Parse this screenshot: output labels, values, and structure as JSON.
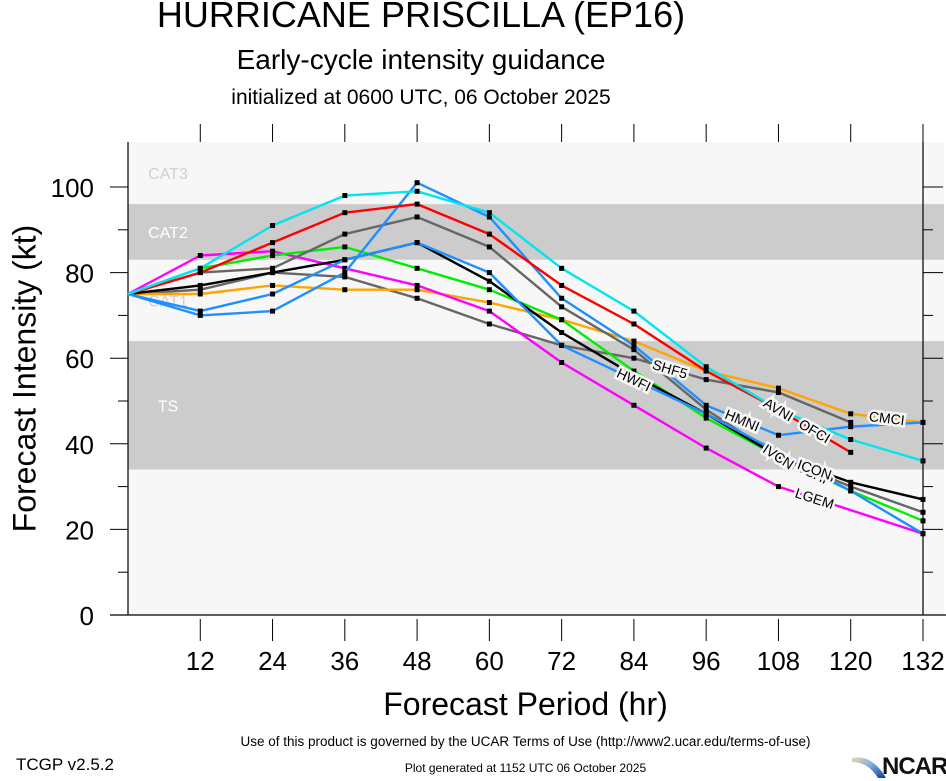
{
  "header": {
    "title": "HURRICANE PRISCILLA (EP16)",
    "subtitle": "Early-cycle intensity guidance",
    "init_line": "initialized at 0600 UTC, 06 October 2025"
  },
  "footer": {
    "terms": "Use of this product is governed by the UCAR Terms of Use (http://www2.ucar.edu/terms-of-use)",
    "generated": "Plot generated at 1152 UTC   06 October 2025",
    "version": "TCGP v2.5.2",
    "logo_text": "NCAR"
  },
  "chart_data": {
    "type": "line",
    "title": "HURRICANE PRISCILLA (EP16)",
    "xlabel": "Forecast Period (hr)",
    "ylabel": "Forecast Intensity (kt)",
    "xlim": [
      0,
      132
    ],
    "ylim": [
      0,
      110
    ],
    "x": [
      0,
      12,
      24,
      36,
      48,
      60,
      72,
      84,
      96,
      108,
      120,
      132
    ],
    "xticks": [
      12,
      24,
      36,
      48,
      60,
      72,
      84,
      96,
      108,
      120,
      132
    ],
    "yticks": [
      0,
      20,
      40,
      60,
      80,
      100
    ],
    "yminor": [
      10,
      30,
      50,
      70,
      90
    ],
    "grid": false,
    "bands": [
      {
        "label": "TS",
        "from": 34,
        "to": 64,
        "shaded": true
      },
      {
        "label": "CAT1",
        "from": 64,
        "to": 83,
        "shaded": false
      },
      {
        "label": "CAT2",
        "from": 83,
        "to": 96,
        "shaded": true
      },
      {
        "label": "CAT3",
        "from": 96,
        "to": 113,
        "shaded": false
      }
    ],
    "colors": {
      "band_shaded": "#cccccc",
      "band_light": "#f7f7f7",
      "band_label": "#ffffff",
      "cat3_label": "#d0d0d0"
    },
    "series": [
      {
        "name": "SHF5",
        "color": "#666666",
        "values": [
          75,
          76,
          80,
          79,
          74,
          68,
          63,
          60,
          55,
          52,
          45,
          null
        ],
        "label_at": 90
      },
      {
        "name": "CMCI",
        "color": "#ffa500",
        "values": [
          75,
          75,
          77,
          76,
          76,
          73,
          69,
          64,
          57,
          53,
          47,
          45
        ],
        "label_at": 126
      },
      {
        "name": "LGEM",
        "color": "#ff00ff",
        "values": [
          75,
          84,
          85,
          81,
          77,
          71,
          59,
          49,
          39,
          30,
          null,
          19
        ],
        "label_at": 114
      },
      {
        "name": "DSHP",
        "color": "#00ee00",
        "values": [
          75,
          81,
          84,
          86,
          81,
          76,
          69,
          57,
          46,
          37,
          29,
          22
        ],
        "label_at": 114
      },
      {
        "name": "IVCN",
        "color": "#666666",
        "values": [
          75,
          80,
          81,
          89,
          93,
          86,
          72,
          62,
          48,
          37,
          30,
          24
        ],
        "label_at": 108
      },
      {
        "name": "ICON",
        "color": "#000000",
        "values": [
          75,
          77,
          80,
          83,
          87,
          78,
          66,
          56,
          47,
          37,
          31,
          27
        ],
        "label_at": 114
      },
      {
        "name": "HWFI",
        "color": "#1e90ff",
        "values": [
          75,
          71,
          75,
          83,
          87,
          80,
          63,
          55,
          47,
          38,
          29,
          19
        ],
        "label_at": 84
      },
      {
        "name": "HMNI",
        "color": "#1e90ff",
        "values": [
          75,
          70,
          71,
          80,
          101,
          93,
          74,
          63,
          49,
          42,
          44,
          45
        ],
        "label_at": 102
      },
      {
        "name": "OFCI",
        "color": "#ff0000",
        "values": [
          75,
          80,
          87,
          94,
          96,
          89,
          77,
          68,
          57,
          48,
          38,
          null
        ],
        "label_at": 114
      },
      {
        "name": "AVNI",
        "color": "#00e5ee",
        "values": [
          75,
          81,
          91,
          98,
          99,
          94,
          81,
          71,
          58,
          48,
          41,
          36
        ],
        "label_at": 108
      }
    ]
  }
}
